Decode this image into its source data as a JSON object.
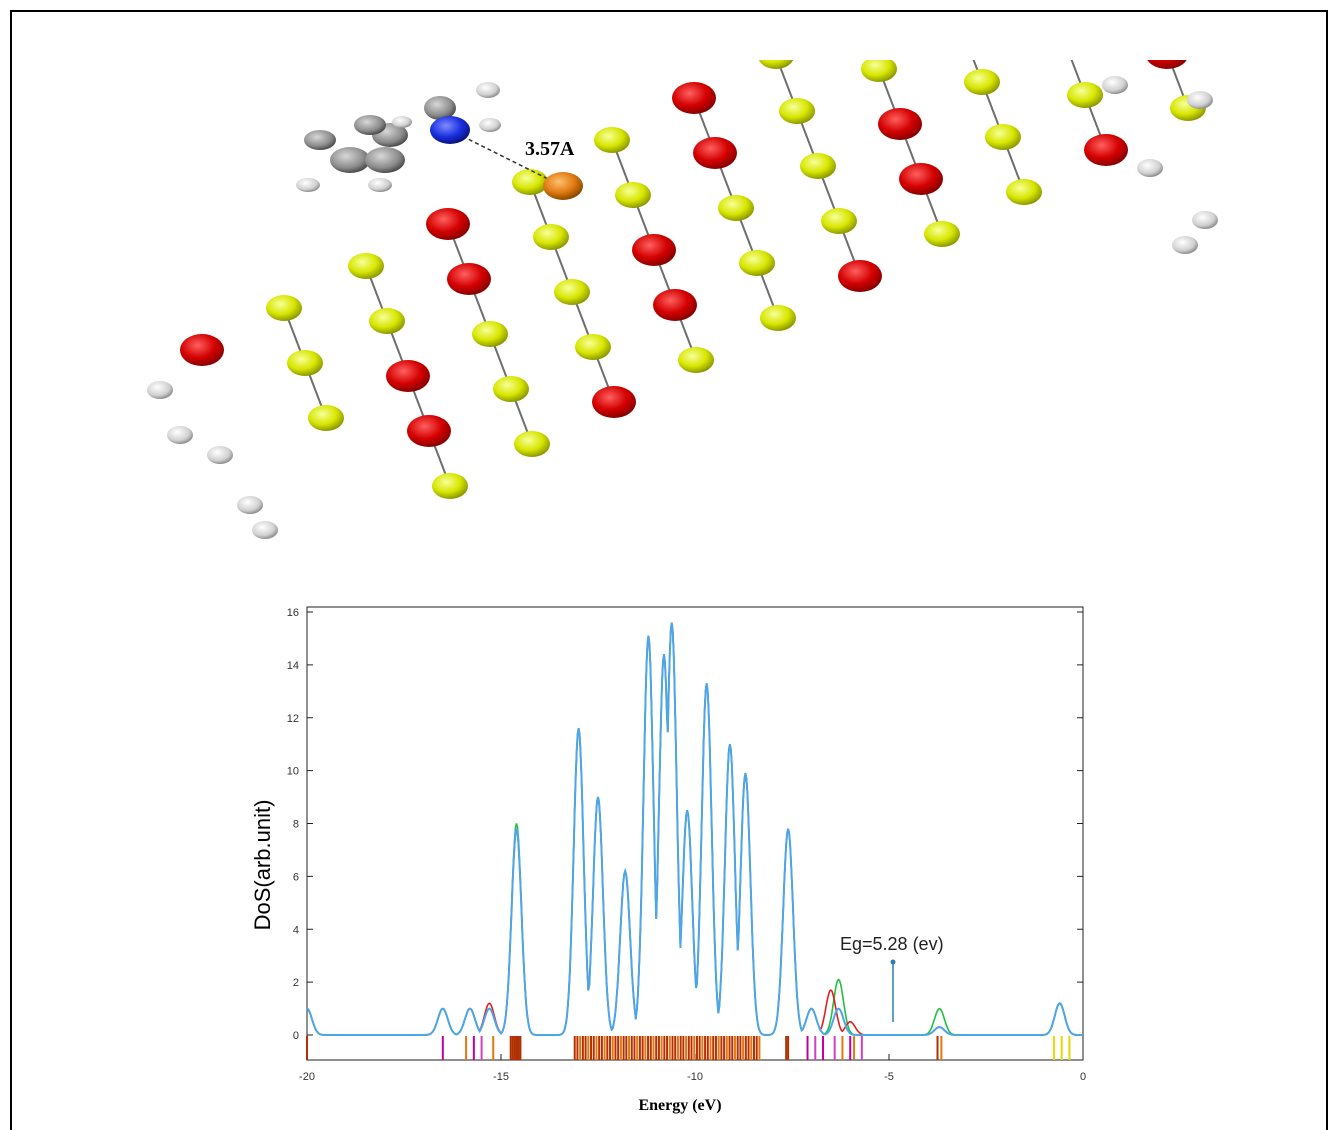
{
  "figure": {
    "distance_label": "3.57A",
    "atom_colors": {
      "red": "#d40000",
      "yellow": "#e6f000",
      "white": "#e8e8e8",
      "gray": "#8a8a8a",
      "blue": "#1a2fe0",
      "orange": "#e07a10"
    }
  },
  "chart_data": {
    "type": "line",
    "xlabel": "Energy (eV)",
    "ylabel": "DoS(arb.unit)",
    "xlim": [
      -20,
      0
    ],
    "ylim": [
      0,
      16
    ],
    "x_ticks": [
      -20,
      -15,
      -10,
      -5,
      0
    ],
    "y_ticks": [
      0,
      2,
      4,
      6,
      8,
      10,
      12,
      14,
      16
    ],
    "annotation": "Eg=5.28 (ev)",
    "series": [
      {
        "color": "#4da6e8",
        "peaks": [
          [
            -20,
            1.0
          ],
          [
            -16.5,
            1.0
          ],
          [
            -15.8,
            1.0
          ],
          [
            -15.3,
            1.0
          ],
          [
            -14.6,
            7.8
          ],
          [
            -13.0,
            11.6
          ],
          [
            -12.5,
            9.0
          ],
          [
            -11.8,
            6.2
          ],
          [
            -11.2,
            15.1
          ],
          [
            -10.8,
            14.4
          ],
          [
            -10.6,
            15.6
          ],
          [
            -10.2,
            8.5
          ],
          [
            -9.7,
            13.3
          ],
          [
            -9.1,
            11.0
          ],
          [
            -8.7,
            9.9
          ],
          [
            -7.6,
            7.8
          ],
          [
            -7.0,
            1.0
          ],
          [
            -6.3,
            1.0
          ],
          [
            -3.7,
            0.3
          ],
          [
            -0.6,
            1.2
          ]
        ]
      },
      {
        "color": "#22c040",
        "peaks": [
          [
            -14.6,
            8.0
          ],
          [
            -6.3,
            2.1
          ],
          [
            -3.7,
            1.0
          ]
        ]
      },
      {
        "color": "#e02020",
        "peaks": [
          [
            -15.3,
            1.2
          ],
          [
            -6.5,
            1.7
          ],
          [
            -6.0,
            0.5
          ]
        ]
      }
    ]
  }
}
